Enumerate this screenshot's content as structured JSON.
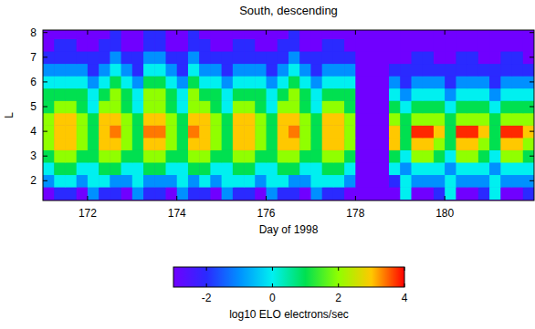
{
  "chart_data": {
    "type": "heatmap",
    "title": "South, descending",
    "x_label": "Day of 1998",
    "y_label": "L",
    "xlim": [
      171,
      182
    ],
    "xticks": [
      172,
      174,
      176,
      178,
      180
    ],
    "ylim": [
      1.2,
      8.1
    ],
    "yticks": [
      2,
      3,
      4,
      5,
      6,
      7,
      8
    ],
    "x": [
      171.125,
      171.375,
      171.625,
      171.875,
      172.125,
      172.375,
      172.625,
      172.875,
      173.125,
      173.375,
      173.625,
      173.875,
      174.125,
      174.375,
      174.625,
      174.875,
      175.125,
      175.375,
      175.625,
      175.875,
      176.125,
      176.375,
      176.625,
      176.875,
      177.125,
      177.375,
      177.625,
      177.875,
      178.125,
      178.375,
      178.625,
      178.875,
      179.125,
      179.375,
      179.625,
      179.875,
      180.125,
      180.375,
      180.625,
      180.875,
      181.125,
      181.375,
      181.625,
      181.875
    ],
    "y": [
      1.5,
      2,
      2.5,
      3,
      3.5,
      4,
      4.5,
      5,
      5.5,
      6,
      6.5,
      7,
      7.5,
      8
    ],
    "values": [
      [
        -3,
        -2,
        -2,
        -3,
        -1,
        -2,
        -2,
        -3,
        -1,
        -2,
        -2,
        -3,
        -1,
        -2,
        -2,
        -3,
        -1,
        -2,
        -2,
        -3,
        -1,
        -2,
        -2,
        -3,
        -1,
        -2,
        -2,
        -3,
        -3,
        -3,
        -3,
        -3,
        0,
        -3,
        -3,
        -2,
        0,
        -3,
        -3,
        -2,
        0,
        -3,
        -3,
        -2
      ],
      [
        -1,
        0,
        0,
        -1,
        0,
        0,
        -1,
        -1,
        0,
        -1,
        -1,
        -1,
        0,
        -1,
        0,
        -1,
        0,
        0,
        0,
        -1,
        0,
        0,
        -1,
        -1,
        0,
        0,
        0,
        -1,
        -3,
        -3,
        -3,
        -2,
        0,
        -1,
        -1,
        -1,
        0,
        -1,
        -1,
        -1,
        0,
        -1,
        -1,
        -1
      ],
      [
        0,
        1,
        1,
        0,
        0,
        1,
        1,
        0,
        0,
        1,
        1,
        0,
        0,
        1,
        1,
        0,
        0,
        1,
        1,
        0,
        0,
        1,
        1,
        0,
        0,
        1,
        1,
        0,
        -3,
        -3,
        -3,
        0,
        -1,
        0,
        0,
        0,
        -1,
        0,
        0,
        0,
        -1,
        0,
        0,
        0
      ],
      [
        1,
        2,
        2,
        1,
        1,
        2,
        2,
        1,
        1,
        2,
        2,
        1,
        1,
        2,
        2,
        1,
        1,
        2,
        2,
        1,
        1,
        2,
        2,
        1,
        1,
        2,
        2,
        1,
        -3,
        -3,
        -3,
        1,
        0,
        2,
        2,
        1,
        0,
        2,
        2,
        1,
        0,
        2,
        2,
        1
      ],
      [
        2,
        3,
        3,
        2,
        1,
        3,
        3,
        2,
        1,
        3,
        3,
        2,
        1,
        3,
        3,
        2,
        1,
        3,
        3,
        2,
        1,
        3,
        3,
        2,
        1,
        3,
        3,
        2,
        -3,
        -3,
        -3,
        3,
        1,
        3,
        3,
        2,
        1,
        3,
        3,
        2,
        1,
        3,
        3,
        2
      ],
      [
        2,
        3,
        3,
        2,
        1,
        3,
        3.4,
        2,
        1,
        3.4,
        3.4,
        2,
        1,
        3.4,
        3,
        2,
        1,
        3,
        3,
        2,
        1,
        3,
        3.4,
        2,
        1,
        3,
        3,
        2,
        -3,
        -3,
        -3,
        3,
        1,
        3.8,
        3.8,
        3,
        1,
        3.8,
        3.8,
        3,
        1,
        3.8,
        3.8,
        3
      ],
      [
        2,
        3,
        3,
        2,
        1,
        3,
        3,
        2,
        1,
        3,
        3,
        2,
        1,
        3,
        3,
        2,
        1,
        3,
        3,
        2,
        1,
        3,
        3,
        2,
        1,
        3,
        3,
        2,
        -3,
        -3,
        -3,
        2,
        1,
        2,
        2,
        2,
        1,
        2,
        2,
        2,
        1,
        2,
        2,
        2
      ],
      [
        1,
        2,
        2,
        1,
        0,
        2,
        2,
        1,
        0,
        2,
        2,
        1,
        0,
        2,
        2,
        1,
        0,
        2,
        2,
        1,
        0,
        2,
        2,
        1,
        0,
        2,
        2,
        1,
        -3,
        -3,
        -3,
        1,
        0,
        1,
        1,
        1,
        0,
        1,
        1,
        1,
        0,
        1,
        1,
        1
      ],
      [
        1,
        1,
        1,
        1,
        0,
        1,
        2,
        1,
        0,
        2,
        2,
        1,
        0,
        2,
        1,
        1,
        0,
        1,
        1,
        1,
        0,
        1,
        2,
        1,
        0,
        1,
        1,
        1,
        -3,
        -3,
        -3,
        0,
        -1,
        0,
        0,
        0,
        -1,
        0,
        0,
        0,
        -1,
        0,
        0,
        0
      ],
      [
        0,
        0,
        0,
        0,
        -1,
        0,
        1,
        0,
        -1,
        1,
        1,
        0,
        -1,
        1,
        0,
        0,
        -1,
        0,
        0,
        0,
        -1,
        0,
        1,
        0,
        -1,
        0,
        0,
        0,
        -3,
        -3,
        -3,
        -1,
        -2,
        -1,
        -1,
        -1,
        -2,
        -1,
        -1,
        -1,
        -2,
        -1,
        -1,
        -1
      ],
      [
        -1,
        -1,
        -1,
        -1,
        -2,
        -1,
        0,
        -1,
        -2,
        0,
        0,
        -1,
        -2,
        0,
        -1,
        -1,
        -2,
        -1,
        -1,
        -1,
        -2,
        -1,
        0,
        -1,
        -2,
        -1,
        -1,
        -1,
        -3,
        -3,
        -3,
        -2,
        -2,
        -2,
        -2,
        -2,
        -2,
        -2,
        -2,
        -2,
        -2,
        -2,
        -2,
        -2
      ],
      [
        -2,
        -2,
        -2,
        -2,
        -2,
        -2,
        -1,
        -2,
        -2,
        -1,
        -1,
        -2,
        -2,
        -1,
        -2,
        -2,
        -2,
        -2,
        -2,
        -2,
        -2,
        -2,
        -1,
        -2,
        -2,
        -2,
        -2,
        -2,
        -3,
        -3,
        -3,
        -3,
        -3,
        -2,
        -2,
        -3,
        -3,
        -2,
        -2,
        -3,
        -3,
        -2,
        -2,
        -3
      ],
      [
        -3,
        -2,
        -2,
        -3,
        -3,
        -2,
        -2,
        -3,
        -3,
        -2,
        -2,
        -3,
        -3,
        -2,
        -2,
        -3,
        -3,
        -2,
        -2,
        -3,
        -3,
        -2,
        -2,
        -3,
        -3,
        -2,
        -2,
        -3,
        -3,
        -3,
        -3,
        -3,
        -3,
        -3,
        -3,
        -3,
        -3,
        -3,
        -3,
        -3,
        -3,
        -3,
        -3,
        -3
      ],
      [
        -3,
        -3,
        -3,
        -3,
        -3,
        -3,
        -2,
        -3,
        -3,
        -2,
        -2,
        -3,
        -3,
        -2,
        -3,
        -3,
        -3,
        -3,
        -3,
        -3,
        -3,
        -3,
        -2,
        -3,
        -3,
        -3,
        -3,
        -3,
        -3,
        -3,
        -3,
        -3,
        -3,
        -3,
        -3,
        -3,
        -3,
        -3,
        -3,
        -3,
        -3,
        -3,
        -3,
        -3
      ]
    ],
    "colorbar": {
      "range": [
        -3,
        4
      ],
      "ticks": [
        -2,
        0,
        2,
        4
      ],
      "label": "log10 ELO electrons/sec"
    }
  }
}
